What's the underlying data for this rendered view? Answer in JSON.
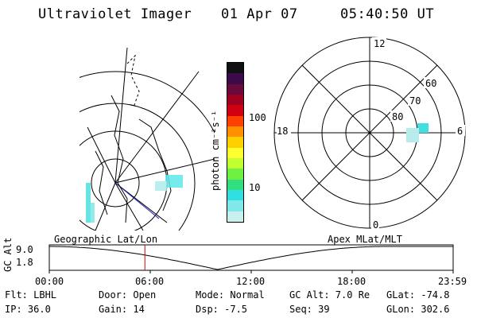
{
  "header": {
    "instrument": "Ultraviolet Imager",
    "date": "01 Apr 07",
    "time": "05:40:50 UT"
  },
  "colorbar": {
    "unit_label": "photon cm⁻²s⁻¹",
    "tick_labels": [
      "100",
      "10"
    ],
    "colors": [
      "#101010",
      "#3a0a4a",
      "#6a0a3a",
      "#a00020",
      "#d00010",
      "#ff4000",
      "#ff9000",
      "#ffd000",
      "#ffff30",
      "#c0ff30",
      "#70f040",
      "#30e080",
      "#30e0e0",
      "#80e8e8",
      "#c8f0f0"
    ]
  },
  "polar": {
    "hour_labels": [
      "12",
      "18",
      "6",
      "0"
    ],
    "lat_labels": [
      "60",
      "70",
      "80"
    ]
  },
  "timeline": {
    "left_label": "Geographic Lat/Lon",
    "right_label": "Apex MLat/MLT",
    "yaxis_label": "GC Alt",
    "y_ticks": [
      "9.0",
      "1.8"
    ],
    "x_ticks": [
      "00:00",
      "06:00",
      "12:00",
      "18:00",
      "23:59"
    ],
    "current_time_hours": 5.68,
    "marker_color": "#d00000"
  },
  "info": {
    "filter": "Flt: LBHL",
    "door": "Door: Open",
    "mode": "Mode: Normal",
    "gc_alt": "GC Alt: 7.0 Re",
    "glat": "GLat: -74.8",
    "ip": "IP: 36.0",
    "gain": "Gain: 14",
    "dsp": "Dsp:   -7.5",
    "seq": "Seq: 39",
    "glon": "GLon: 302.6"
  }
}
